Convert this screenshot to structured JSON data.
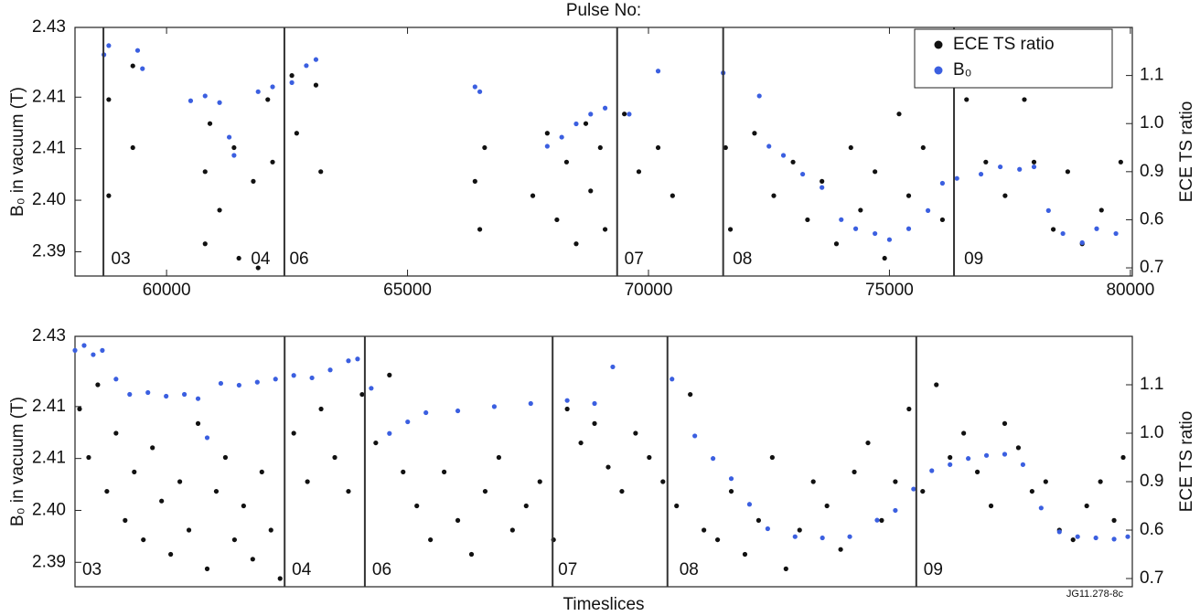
{
  "chart_data": [
    {
      "type": "scatter",
      "xlabel": "Pulse No:",
      "ylabel": "B₀ in vacuum (T)",
      "y2label": "ECE TS ratio",
      "xlim": [
        58100,
        80040
      ],
      "xticks": [
        60000,
        65000,
        70000,
        75000,
        80000
      ],
      "ylim": [
        2.385,
        2.426
      ],
      "yticks": [
        {
          "value": 2.426,
          "label": "2.43"
        },
        {
          "value": 2.4145,
          "label": "2.41"
        },
        {
          "value": 2.406,
          "label": "2.41"
        },
        {
          "value": 2.3975,
          "label": "2.40"
        },
        {
          "value": 2.389,
          "label": "2.39"
        }
      ],
      "y2lim": [
        0.683,
        1.2
      ],
      "y2ticks": [
        1.1,
        {
          "value": 1.0,
          "label": "1.0"
        },
        0.9,
        0.6,
        0.7
      ],
      "legend": "upper right",
      "dividers": [
        58690,
        62445,
        69350,
        71550,
        76340
      ],
      "segments": [
        {
          "label": "03",
          "x": 58850
        },
        {
          "label": "04",
          "x": 61750
        },
        {
          "label": "06",
          "x": 62550
        },
        {
          "label": "07",
          "x": 69500
        },
        {
          "label": "08",
          "x": 71750
        },
        {
          "label": "09",
          "x": 76550
        }
      ],
      "series": [
        {
          "name": "ECE TS ratio",
          "color": "#111111",
          "axis": "y2",
          "x": [
            58800,
            58800,
            59300,
            59300,
            60800,
            60800,
            60900,
            61100,
            61400,
            61500,
            61800,
            61900,
            62100,
            62200,
            62600,
            62700,
            63100,
            63200,
            66400,
            66500,
            66600,
            67600,
            67900,
            68100,
            68300,
            68500,
            68700,
            68800,
            69000,
            69100,
            69500,
            69800,
            70200,
            70500,
            71600,
            71700,
            72200,
            72600,
            73000,
            73300,
            73600,
            73900,
            74200,
            74400,
            74700,
            74900,
            75200,
            75400,
            75700,
            76100,
            76600,
            77000,
            77400,
            77800,
            78000,
            78400,
            78700,
            79000,
            79400,
            79800
          ],
          "values": [
            1.05,
            0.85,
            1.12,
            0.95,
            0.9,
            0.75,
            1.0,
            0.82,
            0.95,
            0.72,
            0.88,
            0.7,
            1.05,
            0.92,
            1.1,
            0.98,
            1.08,
            0.9,
            0.88,
            0.78,
            0.95,
            0.85,
            0.98,
            0.8,
            0.92,
            0.75,
            1.0,
            0.86,
            0.95,
            0.78,
            1.02,
            0.9,
            0.95,
            0.85,
            0.95,
            0.78,
            0.98,
            0.85,
            0.92,
            0.8,
            0.88,
            0.75,
            0.95,
            0.82,
            0.9,
            0.72,
            1.02,
            0.85,
            0.95,
            0.8,
            1.05,
            0.92,
            0.85,
            1.05,
            0.92,
            0.78,
            0.9,
            0.75,
            0.82,
            0.92
          ]
        },
        {
          "name": "B₀",
          "color": "#3b5fe0",
          "x": [
            58700,
            58800,
            59400,
            59500,
            60500,
            60800,
            61100,
            61300,
            61400,
            61900,
            62200,
            62600,
            62900,
            63100,
            66400,
            66500,
            67900,
            68200,
            68500,
            68800,
            69100,
            69600,
            70200,
            71550,
            72300,
            72500,
            72800,
            73200,
            73600,
            74000,
            74300,
            74700,
            75000,
            75400,
            75800,
            76100,
            76400,
            76900,
            77300,
            77700,
            78000,
            78300,
            78600,
            79000,
            79300,
            79700
          ],
          "values": [
            2.4215,
            2.423,
            2.4222,
            2.4192,
            2.4139,
            2.4147,
            2.4136,
            2.4079,
            2.4049,
            2.4154,
            2.4162,
            2.4169,
            2.4197,
            2.4207,
            2.4162,
            2.4154,
            2.4064,
            2.4079,
            2.4101,
            2.4117,
            2.4127,
            2.4117,
            2.4188,
            2.4185,
            2.4147,
            2.4064,
            2.4049,
            2.4018,
            2.3996,
            2.3943,
            2.3928,
            2.392,
            2.391,
            2.3928,
            2.3958,
            2.4003,
            2.4011,
            2.4018,
            2.403,
            2.4026,
            2.403,
            2.3958,
            2.392,
            2.3905,
            2.3928,
            2.392
          ]
        }
      ]
    },
    {
      "type": "scatter",
      "xlabel": "Timeslices",
      "ylabel": "B₀ in vacuum (T)",
      "y2label": "ECE TS ratio",
      "annotation": "JG11.278-8c",
      "xlim": [
        0,
        1160
      ],
      "ylim": [
        2.385,
        2.426
      ],
      "yticks": [
        {
          "value": 2.426,
          "label": "2.43"
        },
        {
          "value": 2.4145,
          "label": "2.41"
        },
        {
          "value": 2.406,
          "label": "2.41"
        },
        {
          "value": 2.3975,
          "label": "2.40"
        },
        {
          "value": 2.389,
          "label": "2.39"
        }
      ],
      "y2lim": [
        0.683,
        1.2
      ],
      "y2ticks": [
        1.1,
        {
          "value": 1.0,
          "label": "1.0"
        },
        0.9,
        0.6,
        0.7
      ],
      "dividers": [
        230,
        318,
        524,
        650,
        923
      ],
      "segments": [
        {
          "label": "03",
          "x": 8
        },
        {
          "label": "04",
          "x": 238
        },
        {
          "label": "06",
          "x": 326
        },
        {
          "label": "07",
          "x": 530
        },
        {
          "label": "08",
          "x": 663
        },
        {
          "label": "09",
          "x": 931
        }
      ],
      "series": [
        {
          "color": "#111111",
          "axis": "y2",
          "x": [
            5,
            15,
            25,
            35,
            45,
            55,
            65,
            75,
            85,
            95,
            105,
            115,
            125,
            135,
            145,
            155,
            165,
            175,
            185,
            195,
            205,
            215,
            225,
            240,
            255,
            270,
            285,
            300,
            315,
            330,
            345,
            360,
            375,
            390,
            405,
            420,
            435,
            450,
            465,
            480,
            495,
            510,
            525,
            540,
            555,
            570,
            585,
            600,
            615,
            630,
            645,
            660,
            675,
            690,
            705,
            720,
            735,
            750,
            765,
            780,
            795,
            810,
            825,
            840,
            855,
            870,
            885,
            900,
            915,
            930,
            945,
            960,
            975,
            990,
            1005,
            1020,
            1035,
            1050,
            1065,
            1080,
            1095,
            1110,
            1125,
            1140,
            1150
          ],
          "values": [
            1.05,
            0.95,
            1.1,
            0.88,
            1.0,
            0.82,
            0.92,
            0.78,
            0.97,
            0.86,
            0.75,
            0.9,
            0.8,
            1.02,
            0.72,
            0.88,
            0.95,
            0.78,
            0.85,
            0.74,
            0.92,
            0.8,
            0.7,
            1.0,
            0.9,
            1.05,
            0.95,
            0.88,
            1.08,
            0.98,
            1.12,
            0.92,
            0.85,
            0.78,
            0.92,
            0.82,
            0.75,
            0.88,
            0.95,
            0.8,
            0.85,
            0.9,
            0.78,
            1.05,
            0.98,
            1.02,
            0.93,
            0.88,
            1.0,
            0.95,
            0.9,
            0.85,
            1.08,
            0.8,
            0.78,
            0.88,
            0.75,
            0.82,
            0.95,
            0.72,
            0.8,
            0.9,
            0.85,
            0.76,
            0.92,
            0.98,
            0.82,
            0.9,
            1.05,
            0.88,
            1.1,
            0.95,
            1.0,
            0.92,
            0.85,
            1.02,
            0.97,
            0.88,
            0.9,
            0.8,
            0.78,
            0.85,
            0.9,
            0.82,
            0.95
          ]
        },
        {
          "color": "#3b5fe0",
          "x": [
            0,
            10,
            20,
            30,
            45,
            60,
            80,
            100,
            120,
            135,
            145,
            160,
            180,
            200,
            220,
            240,
            260,
            280,
            300,
            310,
            325,
            345,
            365,
            385,
            420,
            460,
            500,
            540,
            570,
            590,
            655,
            680,
            700,
            720,
            740,
            760,
            790,
            820,
            850,
            880,
            900,
            920,
            940,
            960,
            980,
            1000,
            1020,
            1040,
            1060,
            1080,
            1100,
            1120,
            1140,
            1155
          ],
          "values": [
            2.4237,
            2.4245,
            2.423,
            2.4237,
            2.419,
            2.4165,
            2.4168,
            2.4162,
            2.4165,
            2.4158,
            2.4094,
            2.4183,
            2.418,
            2.4185,
            2.419,
            2.4196,
            2.4192,
            2.4205,
            2.422,
            2.4223,
            2.4175,
            2.4101,
            2.412,
            2.4135,
            2.4138,
            2.4145,
            2.415,
            2.4155,
            2.415,
            2.421,
            2.419,
            2.4097,
            2.406,
            2.4027,
            2.3985,
            2.3945,
            2.3932,
            2.393,
            2.3932,
            2.3959,
            2.3975,
            2.401,
            2.404,
            2.405,
            2.406,
            2.4065,
            2.4067,
            2.405,
            2.3979,
            2.394,
            2.3932,
            2.393,
            2.3928,
            2.3932
          ]
        }
      ]
    }
  ]
}
